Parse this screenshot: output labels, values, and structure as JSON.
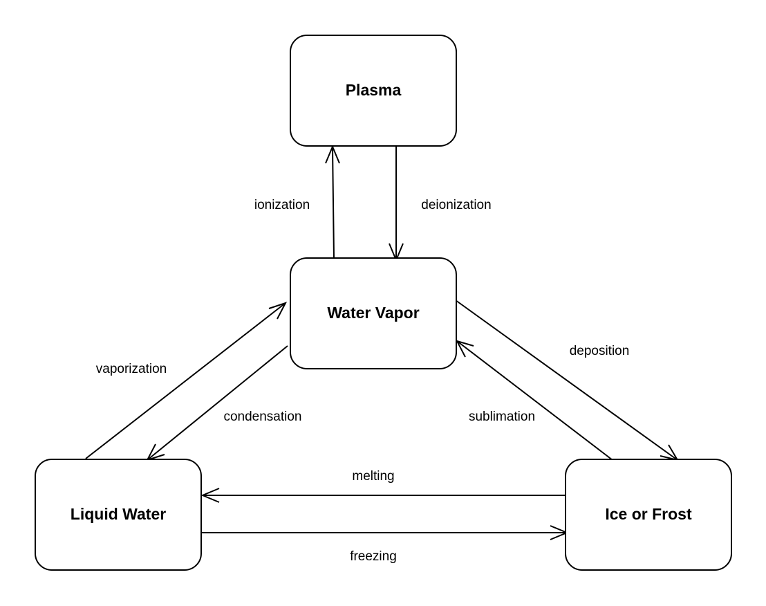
{
  "diagram": {
    "nodes": {
      "plasma": "Plasma",
      "water_vapor": "Water Vapor",
      "liquid_water": "Liquid Water",
      "ice_or_frost": "Ice or Frost"
    },
    "edges": {
      "ionization": "ionization",
      "deionization": "deionization",
      "vaporization": "vaporization",
      "condensation": "condensation",
      "deposition": "deposition",
      "sublimation": "sublimation",
      "melting": "melting",
      "freezing": "freezing"
    },
    "colors": {
      "stroke": "#000000",
      "background": "#ffffff",
      "text": "#000000"
    }
  }
}
